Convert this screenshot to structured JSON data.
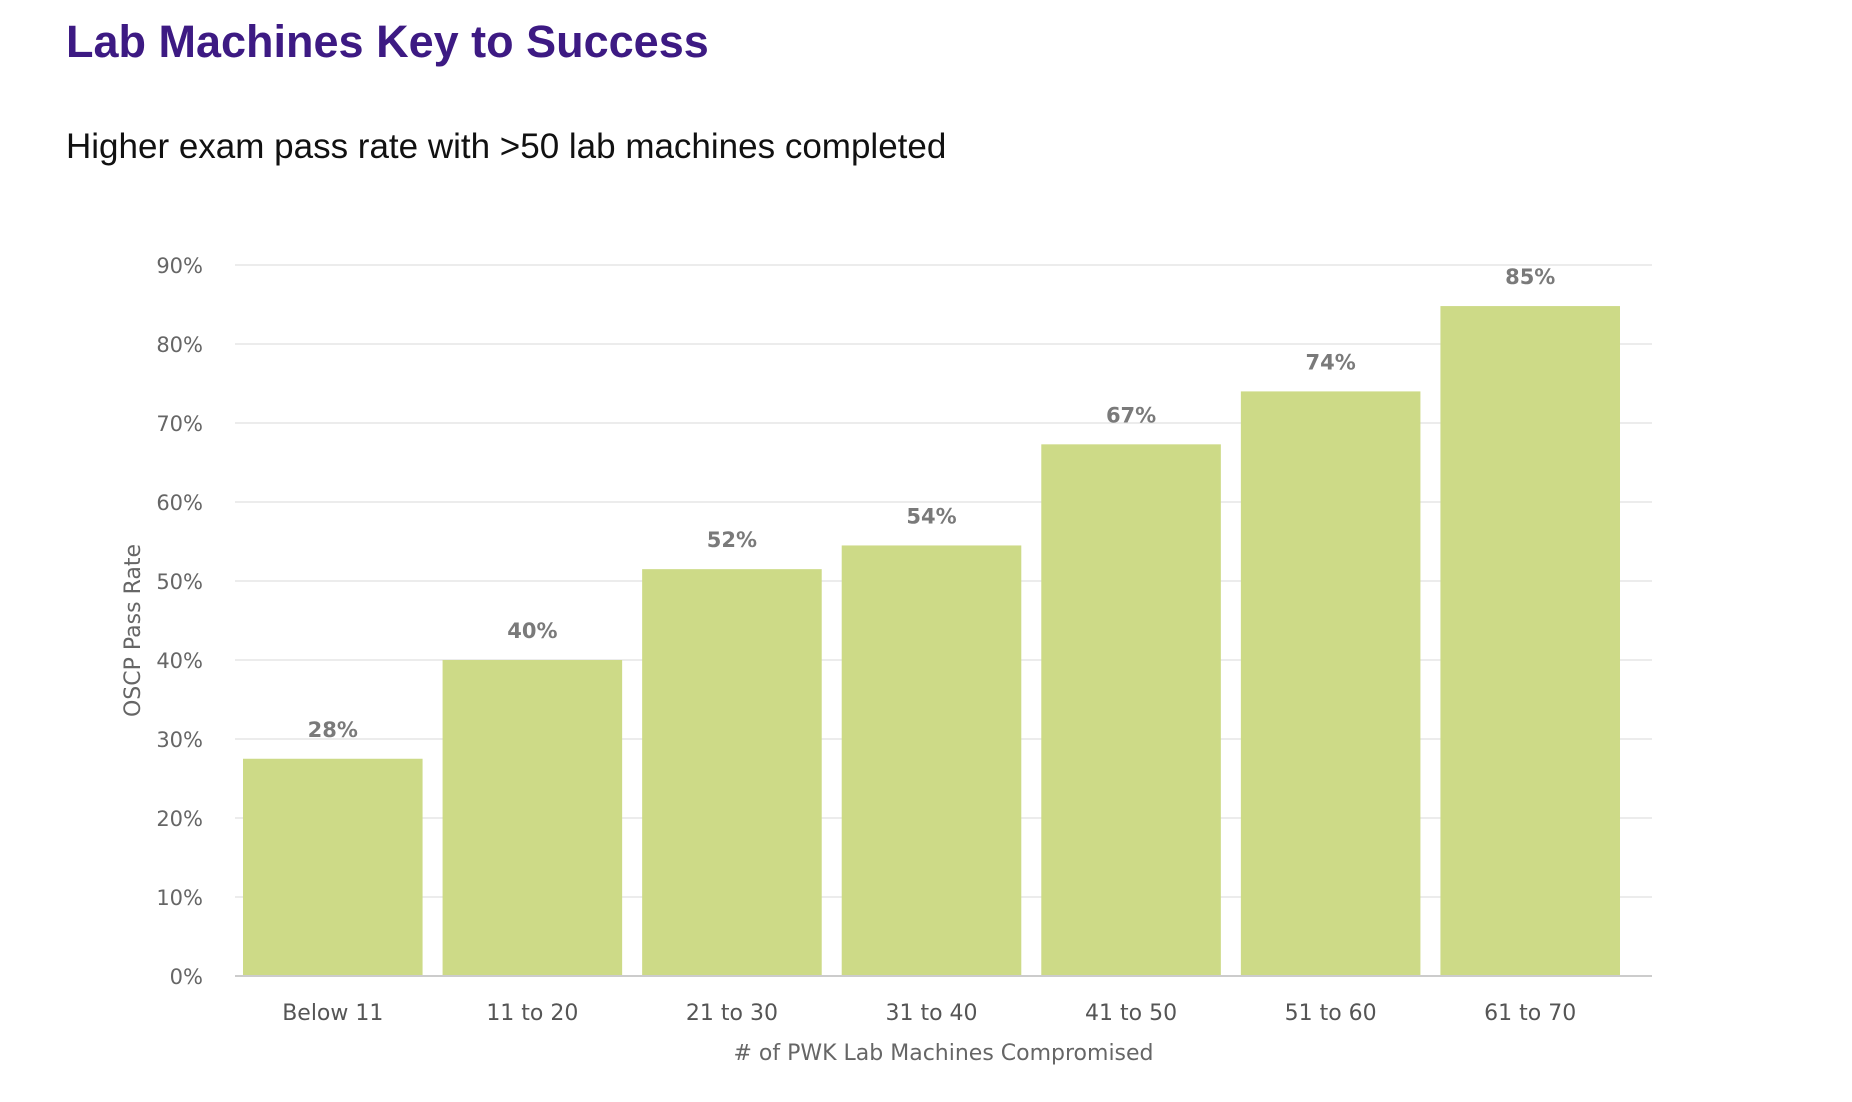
{
  "header": {
    "title": "Lab Machines Key to Success",
    "subtitle": "Higher exam pass rate with >50 lab machines completed"
  },
  "colors": {
    "title": "#3d1a83",
    "bar": "#cdda87",
    "grid": "#e6e6e6",
    "label": "#7a7a7a"
  },
  "chart_data": {
    "type": "bar",
    "categories": [
      "Below 11",
      "11 to 20",
      "21 to 30",
      "31 to 40",
      "41 to 50",
      "51 to 60",
      "61 to 70"
    ],
    "values": [
      27.5,
      40,
      51.5,
      54.5,
      67.3,
      74,
      84.8
    ],
    "value_labels": [
      "28%",
      "40%",
      "52%",
      "54%",
      "67%",
      "74%",
      "85%"
    ],
    "xlabel": "# of PWK Lab Machines Compromised",
    "ylabel": "OSCP Pass Rate",
    "ylim": [
      0,
      90
    ],
    "yticks": [
      0,
      10,
      20,
      30,
      40,
      50,
      60,
      70,
      80,
      90
    ],
    "ytick_labels": [
      "0%",
      "10%",
      "20%",
      "30%",
      "40%",
      "50%",
      "60%",
      "70%",
      "80%",
      "90%"
    ],
    "grid": true,
    "legend": "none"
  }
}
